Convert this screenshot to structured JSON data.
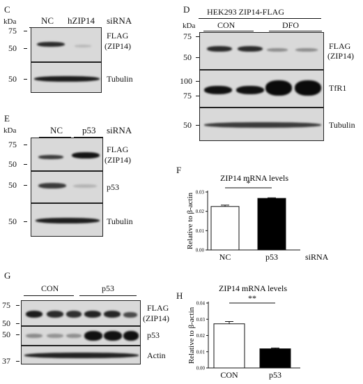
{
  "panelC": {
    "letter": "C",
    "kda": "kDa",
    "lanes": [
      "NC",
      "hZIP14"
    ],
    "treatment": "siRNA",
    "markers_top": [
      "75",
      "50"
    ],
    "marker_tub": "50",
    "label_flag": "FLAG",
    "label_zip": "(ZIP14)",
    "label_tub": "Tubulin"
  },
  "panelD": {
    "letter": "D",
    "cell_line": "HEK293 ZIP14-FLAG",
    "kda": "kDa",
    "groups": [
      "CON",
      "DFO"
    ],
    "markers_flag": [
      "75",
      "50"
    ],
    "markers_tfr": [
      "100",
      "75"
    ],
    "marker_tub": "50",
    "label_flag": "FLAG",
    "label_zip": "(ZIP14)",
    "label_tfr": "TfR1",
    "label_tub": "Tubulin"
  },
  "panelE": {
    "letter": "E",
    "kda": "kDa",
    "lanes": [
      "NC",
      "p53"
    ],
    "treatment": "siRNA",
    "markers_flag": [
      "75",
      "50"
    ],
    "marker_p53": "50",
    "marker_tub": "50",
    "label_flag": "FLAG",
    "label_zip": "(ZIP14)",
    "label_p53": "p53",
    "label_tub": "Tubulin"
  },
  "panelG": {
    "letter": "G",
    "groups": [
      "CON",
      "p53"
    ],
    "markers_flag": [
      "75",
      "50"
    ],
    "marker_p53": "50",
    "marker_actin": "37",
    "label_flag": "FLAG",
    "label_zip": "(ZIP14)",
    "label_p53": "p53",
    "label_actin": "Actin"
  },
  "chart_data": [
    {
      "panel": "F",
      "type": "bar",
      "title": "ZIP14 mRNA levels",
      "ylabel": "Relative to β-actin",
      "categories": [
        "NC",
        "p53"
      ],
      "values": [
        0.0225,
        0.0267
      ],
      "errors": [
        0.0007,
        0.0003
      ],
      "colors": [
        "#ffffff",
        "#000000"
      ],
      "ylim": [
        0,
        0.03
      ],
      "yticks": [
        "0.00",
        "0.01",
        "0.02",
        "0.03"
      ],
      "significance": "*",
      "xcaption": "siRNA"
    },
    {
      "panel": "H",
      "type": "bar",
      "title": "ZIP14 mRNA levels",
      "ylabel": "Relative to β-actin",
      "categories": [
        "CON",
        "p53"
      ],
      "values": [
        0.0272,
        0.0118
      ],
      "errors": [
        0.0014,
        0.0005
      ],
      "colors": [
        "#ffffff",
        "#000000"
      ],
      "ylim": [
        0,
        0.04
      ],
      "yticks": [
        "0.00",
        "0.01",
        "0.02",
        "0.03",
        "0.04"
      ],
      "significance": "**"
    }
  ]
}
